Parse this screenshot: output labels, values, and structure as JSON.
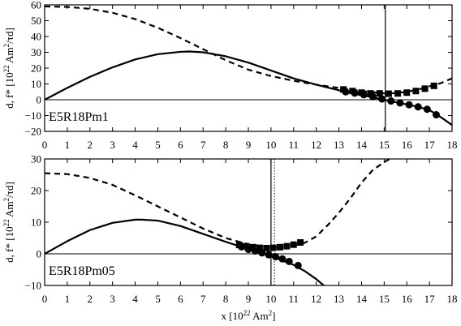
{
  "chart_data": [
    {
      "type": "line",
      "panel_label": "E5R18Pm1",
      "ylabel": "d, f* [10²² Am²/τd]",
      "xlabel": "",
      "xlim": [
        0,
        18
      ],
      "ylim": [
        -20,
        60
      ],
      "xticks": [
        0,
        1,
        2,
        3,
        4,
        5,
        6,
        7,
        8,
        9,
        10,
        11,
        12,
        13,
        14,
        15,
        16,
        17,
        18
      ],
      "yticks": [
        -20,
        -10,
        0,
        10,
        20,
        30,
        40,
        50,
        60
      ],
      "vline_solid": 15.05,
      "series": [
        {
          "style": "dashed",
          "x": [
            0,
            1,
            2,
            3,
            4,
            5,
            6,
            7,
            8,
            9,
            10,
            11,
            12,
            13,
            14,
            15,
            15.5,
            16,
            16.5,
            17,
            17.5,
            18
          ],
          "y": [
            59,
            58.7,
            57.5,
            55,
            51,
            45.5,
            39,
            32,
            25,
            19,
            15,
            12,
            9.5,
            7.5,
            5.5,
            4,
            4.2,
            5,
            6.5,
            8.5,
            10.5,
            13.5
          ]
        },
        {
          "style": "solid",
          "x": [
            0,
            1,
            2,
            3,
            4,
            5,
            6,
            6.4,
            7,
            8,
            9,
            10,
            11,
            12,
            13,
            14,
            15,
            15.5,
            16,
            16.5,
            17,
            17.5,
            18
          ],
          "y": [
            0,
            7.5,
            14.5,
            20.5,
            25.5,
            28.8,
            30.3,
            30.5,
            30,
            27.5,
            23.5,
            18.5,
            13.5,
            9.5,
            6,
            3,
            0,
            -1.5,
            -3,
            -4.5,
            -6.5,
            -11,
            -16
          ]
        },
        {
          "style": "squares",
          "x": [
            13.2,
            13.6,
            14.0,
            14.4,
            14.8,
            15.2,
            15.6,
            16.0,
            16.4,
            16.8,
            17.2
          ],
          "y": [
            6.5,
            5.5,
            4.5,
            4.0,
            4.0,
            3.8,
            4.0,
            4.5,
            5.5,
            7.0,
            8.8
          ]
        },
        {
          "style": "circles",
          "x": [
            13.3,
            13.7,
            14.1,
            14.5,
            14.9,
            15.3,
            15.7,
            16.1,
            16.5,
            16.9,
            17.3
          ],
          "y": [
            5.0,
            4.2,
            3.2,
            2.0,
            0.5,
            -0.8,
            -2.0,
            -3.2,
            -4.5,
            -6.0,
            -9.5
          ]
        }
      ]
    },
    {
      "type": "line",
      "panel_label": "E5R18Pm05",
      "ylabel": "d, f* [10²² Am²/τd]",
      "xlabel": "x [10²² Am²]",
      "xlim": [
        0,
        18
      ],
      "ylim": [
        -10,
        30
      ],
      "xticks": [
        0,
        1,
        2,
        3,
        4,
        5,
        6,
        7,
        8,
        9,
        10,
        11,
        12,
        13,
        14,
        15,
        16,
        17,
        18
      ],
      "yticks": [
        -10,
        0,
        10,
        20,
        30
      ],
      "vline_solid": 10.0,
      "vline_dotted": 10.15,
      "series": [
        {
          "style": "dashed",
          "x": [
            0,
            1,
            2,
            3,
            4,
            5,
            6,
            7,
            8,
            9,
            10,
            10.5,
            11,
            11.5,
            12,
            12.5,
            13,
            13.5,
            14,
            14.5,
            15,
            15.5
          ],
          "y": [
            25.5,
            25.2,
            24,
            21.8,
            18.5,
            15,
            11.5,
            8,
            5,
            3,
            2,
            2,
            2.5,
            3.5,
            5.5,
            9,
            13,
            17.5,
            22.5,
            26.5,
            29,
            31
          ]
        },
        {
          "style": "solid",
          "x": [
            0,
            0.5,
            1,
            2,
            3,
            4,
            4.3,
            5,
            6,
            7,
            8,
            9,
            10,
            11,
            11.5,
            12,
            12.5
          ],
          "y": [
            0,
            2,
            4,
            7.5,
            9.8,
            10.8,
            10.8,
            10.5,
            8.8,
            6.3,
            3.8,
            1.5,
            -0.8,
            -3.5,
            -5.5,
            -8,
            -11
          ]
        },
        {
          "style": "squares",
          "x": [
            8.6,
            8.9,
            9.2,
            9.5,
            9.8,
            10.1,
            10.4,
            10.7,
            11.0,
            11.3
          ],
          "y": [
            2.8,
            2.4,
            2.1,
            1.9,
            1.8,
            1.9,
            2.1,
            2.4,
            2.9,
            3.6
          ]
        },
        {
          "style": "circles",
          "x": [
            8.7,
            9.0,
            9.3,
            9.6,
            9.9,
            10.2,
            10.5,
            10.8,
            11.2
          ],
          "y": [
            2.2,
            1.4,
            0.9,
            0.3,
            -0.3,
            -0.9,
            -1.6,
            -2.4,
            -3.7
          ]
        }
      ]
    }
  ]
}
